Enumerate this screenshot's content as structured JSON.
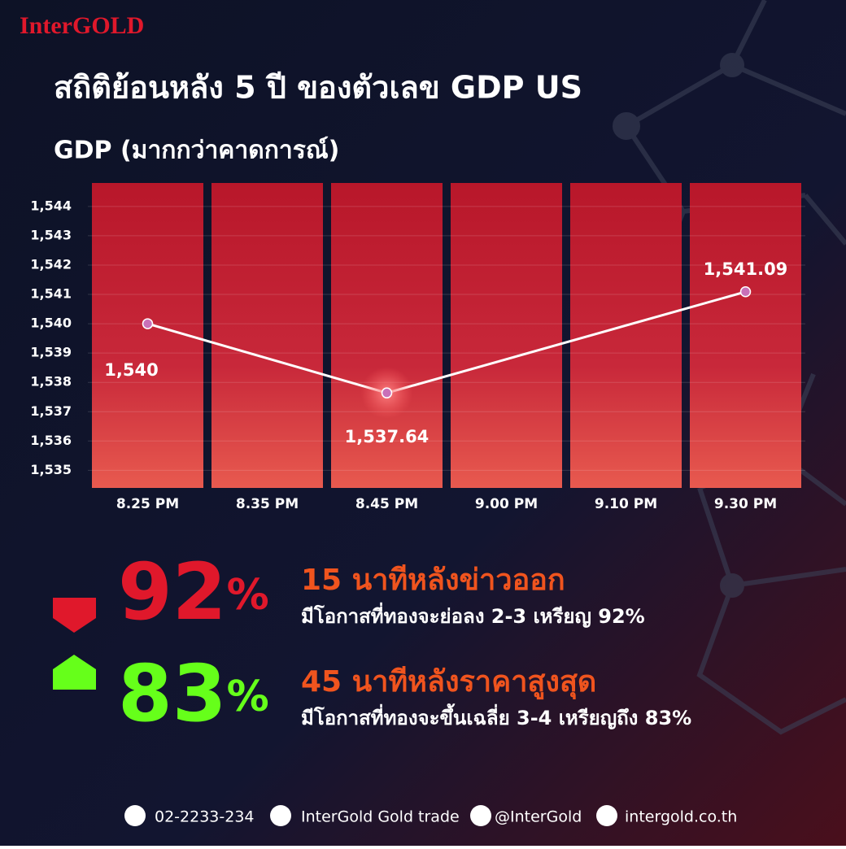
{
  "brand": "InterGOLD",
  "title": "สถิติย้อนหลัง 5 ปี ของตัวเลข GDP US",
  "chart_data": {
    "type": "line",
    "title": "GDP (มากกว่าคาดการณ์)",
    "categories": [
      "8.25 PM",
      "8.35 PM",
      "8.45 PM",
      "9.00 PM",
      "9.10 PM",
      "9.30 PM"
    ],
    "series": [
      {
        "name": "GDP",
        "color": "#ffffff",
        "values": [
          1540,
          null,
          1537.64,
          null,
          null,
          1541.09
        ],
        "value_labels": [
          "1,540",
          null,
          "1,537.64",
          null,
          null,
          "1,541.09"
        ]
      }
    ],
    "ylim": [
      1534.4,
      1544.8
    ],
    "yticks": [
      {
        "value": 1535,
        "label": "1,535"
      },
      {
        "value": 1536,
        "label": "1,536"
      },
      {
        "value": 1537,
        "label": "1,537"
      },
      {
        "value": 1538,
        "label": "1,538"
      },
      {
        "value": 1539,
        "label": "1,539"
      },
      {
        "value": 1540,
        "label": "1,540"
      },
      {
        "value": 1541,
        "label": "1,541"
      },
      {
        "value": 1542,
        "label": "1,542"
      },
      {
        "value": 1543,
        "label": "1,543"
      },
      {
        "value": 1544,
        "label": "1,544"
      }
    ],
    "grid": true
  },
  "stats": [
    {
      "number": "92",
      "unit": "%",
      "color": "#e0182b",
      "headline": "15 นาทีหลังข่าวออก",
      "description": "มีโอกาสที่ทองจะย่อลง 2-3 เหรียญ 92%"
    },
    {
      "number": "83",
      "unit": "%",
      "color": "#66ff1a",
      "headline": "45 นาทีหลังราคาสูงสุด",
      "description": "มีโอกาสที่ทองจะขึ้นเฉลี่ย 3-4 เหรียญถึง 83%"
    }
  ],
  "footer": {
    "phone": "02-2233-234",
    "facebook": "InterGold Gold trade",
    "line": "@InterGold",
    "website": "intergold.co.th"
  }
}
